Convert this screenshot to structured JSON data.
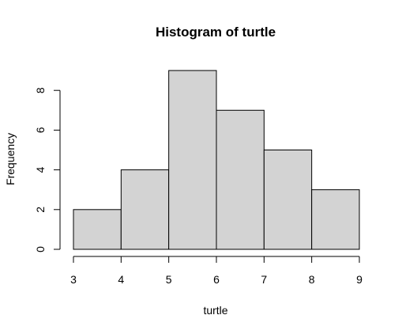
{
  "chart_data": {
    "type": "bar",
    "title": "Histogram of turtle",
    "xlabel": "turtle",
    "ylabel": "Frequency",
    "bins": [
      {
        "start": 3,
        "end": 4,
        "count": 2
      },
      {
        "start": 4,
        "end": 5,
        "count": 4
      },
      {
        "start": 5,
        "end": 6,
        "count": 9
      },
      {
        "start": 6,
        "end": 7,
        "count": 7
      },
      {
        "start": 7,
        "end": 8,
        "count": 5
      },
      {
        "start": 8,
        "end": 9,
        "count": 3
      }
    ],
    "xlim": [
      3,
      9
    ],
    "ylim": [
      0,
      9
    ],
    "x_ticks": [
      "3",
      "4",
      "5",
      "6",
      "7",
      "8",
      "9"
    ],
    "y_ticks": [
      "0",
      "2",
      "4",
      "6",
      "8"
    ],
    "bar_color": "#d3d3d3",
    "grid": false,
    "legend": "none"
  }
}
